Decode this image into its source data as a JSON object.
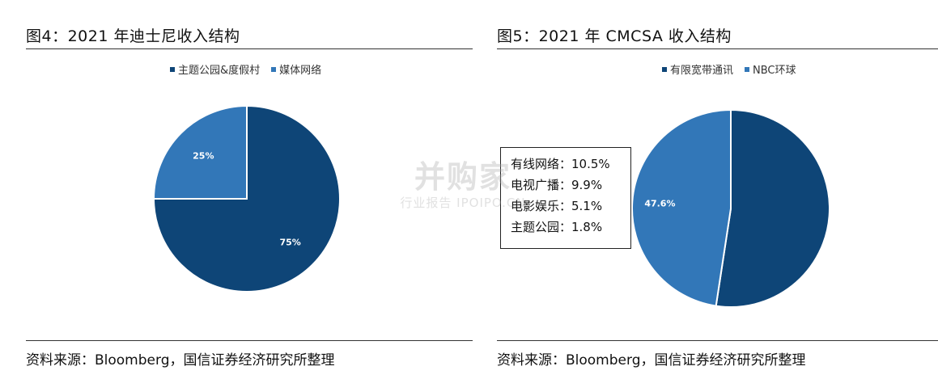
{
  "colors": {
    "dark_blue": "#0e4577",
    "mid_blue": "#3277b8"
  },
  "left": {
    "title": "图4：2021 年迪士尼收入结构",
    "source": "资料来源：Bloomberg，国信证券经济研究所整理"
  },
  "right": {
    "title": "图5：2021 年 CMCSA 收入结构",
    "source": "资料来源：Bloomberg，国信证券经济研究所整理",
    "annotation": [
      "有线网络：10.5%",
      "电视广播：9.9%",
      "电影娱乐：5.1%",
      "主题公园：1.8%"
    ]
  },
  "watermark": {
    "main": "并购家",
    "sub": "行业报告 IPOIPO.CN"
  },
  "chart_data": [
    {
      "type": "pie",
      "title": "图4：2021 年迪士尼收入结构",
      "legend_position": "top",
      "start_angle_deg": 0,
      "slices": [
        {
          "label": "主题公园&度假村",
          "value": 75,
          "display": "75%",
          "color": "#0e4577"
        },
        {
          "label": "媒体网络",
          "value": 25,
          "display": "25%",
          "color": "#3277b8"
        }
      ]
    },
    {
      "type": "pie",
      "title": "图5：2021 年 CMCSA 收入结构",
      "legend_position": "top",
      "start_angle_deg": 0,
      "slices": [
        {
          "label": "有限宽带通讯",
          "value": 52.4,
          "display": "",
          "color": "#0e4577"
        },
        {
          "label": "NBC环球",
          "value": 47.6,
          "display": "47.6%",
          "color": "#3277b8"
        }
      ]
    }
  ]
}
